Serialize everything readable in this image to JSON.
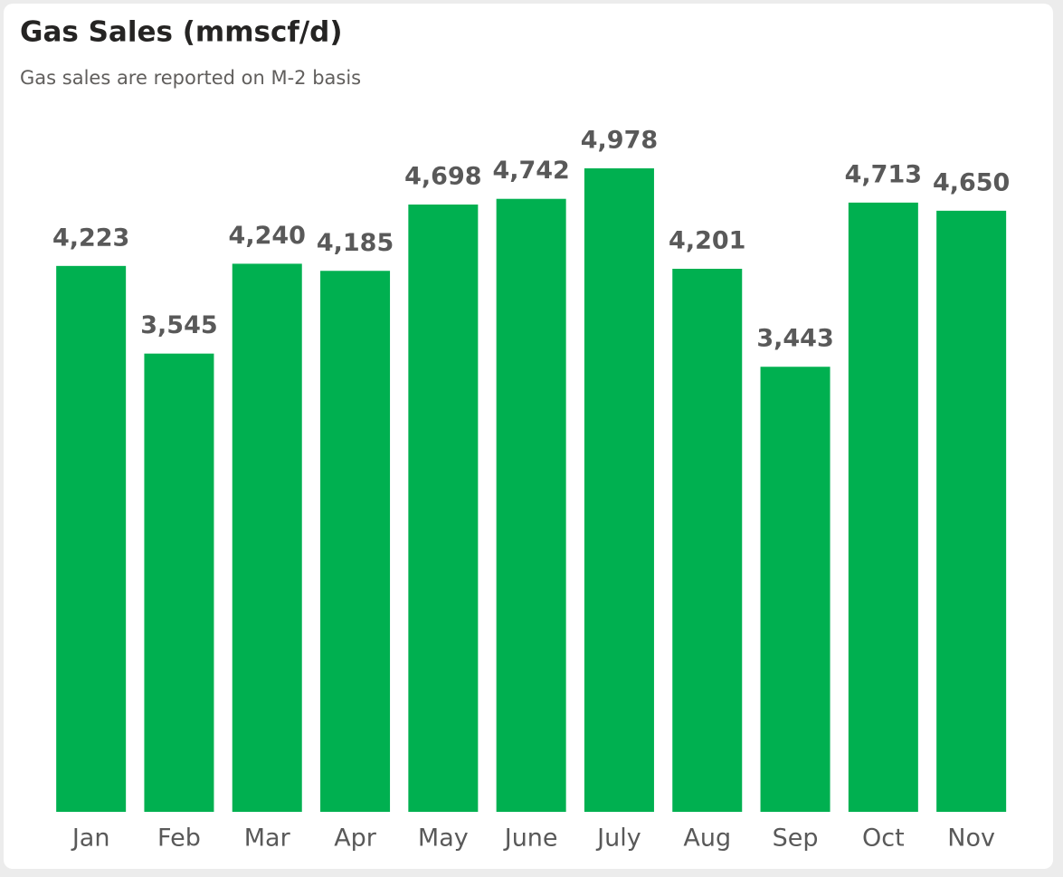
{
  "chart_data": {
    "type": "bar",
    "title": "Gas Sales (mmscf/d)",
    "subtitle": "Gas sales are reported on M-2 basis",
    "categories": [
      "Jan",
      "Feb",
      "Mar",
      "Apr",
      "May",
      "June",
      "July",
      "Aug",
      "Sep",
      "Oct",
      "Nov"
    ],
    "values": [
      4223,
      3545,
      4240,
      4185,
      4698,
      4742,
      4978,
      4201,
      3443,
      4713,
      4650
    ],
    "value_labels": [
      "4,223",
      "3,545",
      "4,240",
      "4,185",
      "4,698",
      "4,742",
      "4,978",
      "4,201",
      "3,443",
      "4,713",
      "4,650"
    ],
    "color": "#00b050"
  }
}
